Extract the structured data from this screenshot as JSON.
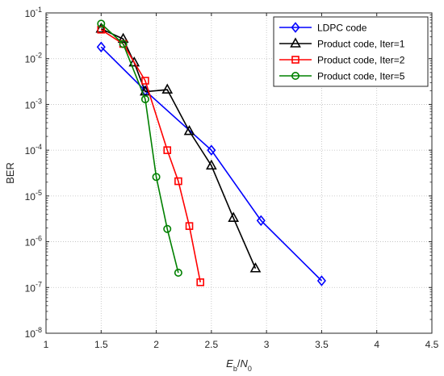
{
  "chart_data": {
    "type": "line",
    "xlabel": "E_b/N_0",
    "xlabel_parts": {
      "main": "E",
      "sub": "b",
      "sep": "/",
      "main2": "N",
      "sub2": "0"
    },
    "ylabel": "BER",
    "xlim": [
      1,
      4.5
    ],
    "ylim": [
      1e-08,
      0.1
    ],
    "yscale": "log",
    "grid": true,
    "legend_position": "top-right",
    "xticks": [
      "1",
      "1.5",
      "2",
      "2.5",
      "3",
      "3.5",
      "4",
      "4.5"
    ],
    "yticks": [
      {
        "base": "10",
        "exp": "-1"
      },
      {
        "base": "10",
        "exp": "-2"
      },
      {
        "base": "10",
        "exp": "-3"
      },
      {
        "base": "10",
        "exp": "-4"
      },
      {
        "base": "10",
        "exp": "-5"
      },
      {
        "base": "10",
        "exp": "-6"
      },
      {
        "base": "10",
        "exp": "-7"
      },
      {
        "base": "10",
        "exp": "-8"
      }
    ],
    "series": [
      {
        "name": "LDPC code",
        "color": "#0000ff",
        "marker": "diamond",
        "x": [
          1.5,
          1.9,
          2.5,
          2.95,
          3.5
        ],
        "y": [
          0.018,
          0.002,
          0.0001,
          2.9e-06,
          1.4e-07
        ]
      },
      {
        "name": "Product code, Iter=1",
        "color": "#000000",
        "marker": "triangle",
        "x": [
          1.5,
          1.7,
          1.8,
          1.9,
          2.1,
          2.3,
          2.5,
          2.7,
          2.9
        ],
        "y": [
          0.045,
          0.027,
          0.0082,
          0.0019,
          0.0021,
          0.00026,
          4.6e-05,
          3.3e-06,
          2.6e-07
        ]
      },
      {
        "name": "Product code, Iter=2",
        "color": "#ff0000",
        "marker": "square",
        "x": [
          1.5,
          1.7,
          1.9,
          2.1,
          2.2,
          2.3,
          2.4
        ],
        "y": [
          0.043,
          0.021,
          0.0033,
          0.0001,
          2.1e-05,
          2.2e-06,
          1.3e-07
        ]
      },
      {
        "name": "Product code, Iter=5",
        "color": "#008000",
        "marker": "circle",
        "x": [
          1.5,
          1.7,
          1.9,
          2.0,
          2.1,
          2.2
        ],
        "y": [
          0.058,
          0.021,
          0.0013,
          2.6e-05,
          1.9e-06,
          2.1e-07
        ]
      }
    ]
  }
}
